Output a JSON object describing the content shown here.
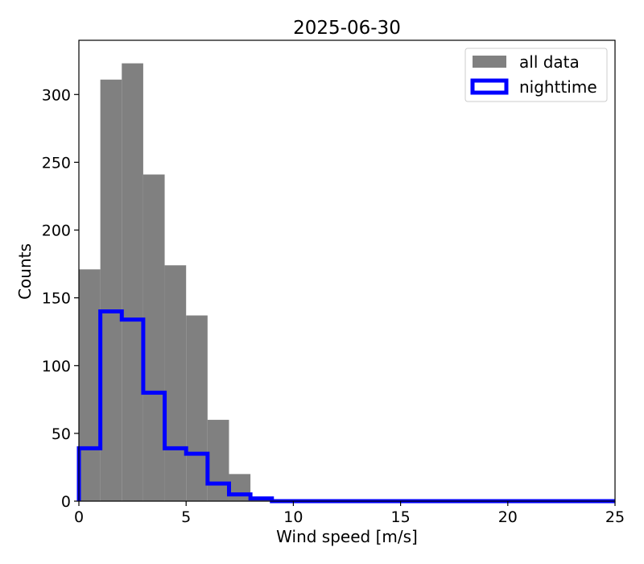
{
  "chart_data": {
    "type": "histogram",
    "title": "2025-06-30",
    "xlabel": "Wind speed [m/s]",
    "ylabel": "Counts",
    "xlim": [
      0,
      25
    ],
    "ylim": [
      0,
      340
    ],
    "xticks": [
      0,
      5,
      10,
      15,
      20,
      25
    ],
    "yticks": [
      0,
      50,
      100,
      150,
      200,
      250,
      300
    ],
    "bin_width": 1,
    "bin_edges": [
      0,
      1,
      2,
      3,
      4,
      5,
      6,
      7,
      8,
      9,
      10,
      11,
      12,
      13,
      14,
      15,
      16,
      17,
      18,
      19,
      20,
      21,
      22,
      23,
      24,
      25
    ],
    "series": [
      {
        "name": "all data",
        "style": "filled",
        "color": "#808080",
        "values": [
          171,
          311,
          323,
          241,
          174,
          137,
          60,
          20,
          2,
          1,
          0,
          0,
          0,
          0,
          0,
          0,
          0,
          0,
          0,
          0,
          0,
          0,
          0,
          0,
          0
        ]
      },
      {
        "name": "nighttime",
        "style": "step",
        "color": "#0000ff",
        "values": [
          39,
          140,
          134,
          80,
          39,
          35,
          13,
          5,
          2,
          0,
          0,
          0,
          0,
          0,
          0,
          0,
          0,
          0,
          0,
          0,
          0,
          0,
          0,
          0,
          0
        ]
      }
    ],
    "grid": false,
    "legend_position": "top-right"
  }
}
